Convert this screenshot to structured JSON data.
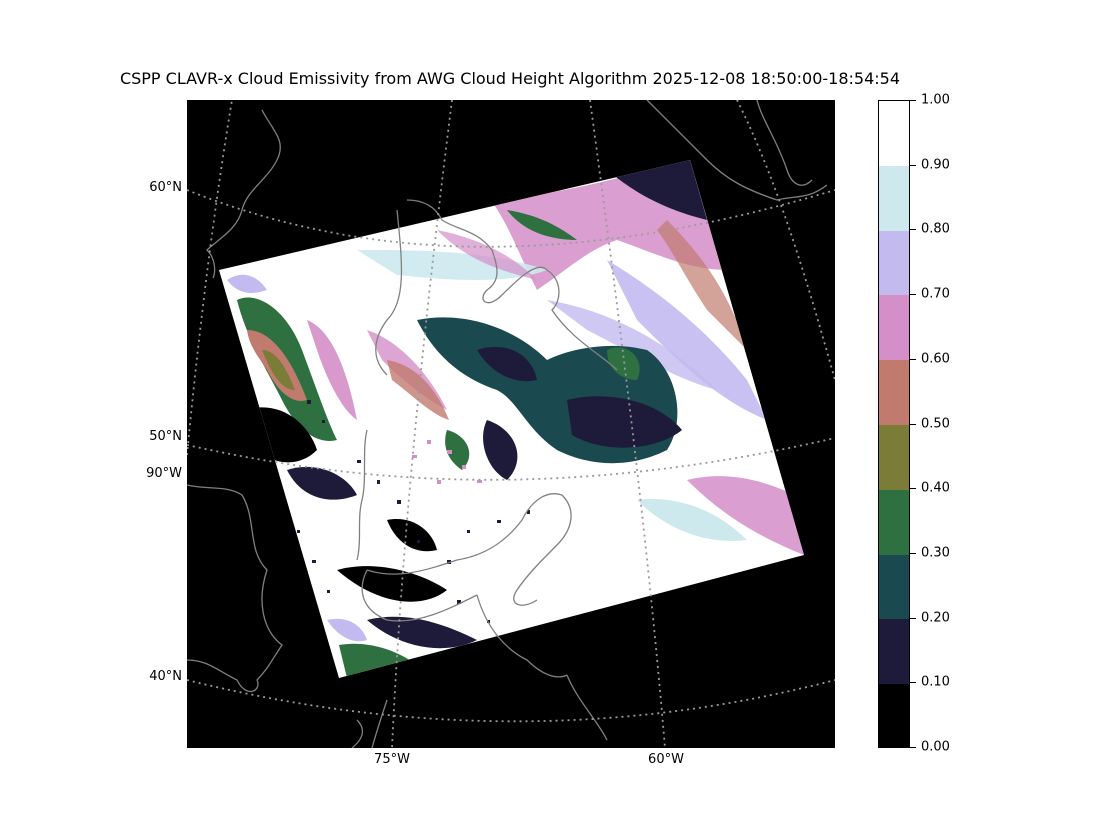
{
  "title": "CSPP CLAVR-x Cloud Emissivity from AWG Cloud Height Algorithm 2025-12-08 18:50:00-18:54:54",
  "map": {
    "lat_labels": [
      "60°N",
      "50°N",
      "90°W",
      "40°N"
    ],
    "lon_labels": [
      "75°W",
      "60°W"
    ],
    "background_color": "#000000",
    "coastline_color": "#808080",
    "gridline_color": "#9a9a9a"
  },
  "colorbar": {
    "ticks": [
      "0.00",
      "0.10",
      "0.20",
      "0.30",
      "0.40",
      "0.50",
      "0.60",
      "0.70",
      "0.80",
      "0.90",
      "1.00"
    ],
    "bins": [
      {
        "min": 0.0,
        "max": 0.1,
        "color": "#000000"
      },
      {
        "min": 0.1,
        "max": 0.2,
        "color": "#1e1a3a"
      },
      {
        "min": 0.2,
        "max": 0.3,
        "color": "#1a4a4f"
      },
      {
        "min": 0.3,
        "max": 0.4,
        "color": "#2e7040"
      },
      {
        "min": 0.4,
        "max": 0.5,
        "color": "#7a7c38"
      },
      {
        "min": 0.5,
        "max": 0.6,
        "color": "#c07a6e"
      },
      {
        "min": 0.6,
        "max": 0.7,
        "color": "#d48ec8"
      },
      {
        "min": 0.7,
        "max": 0.8,
        "color": "#c3baf0"
      },
      {
        "min": 0.8,
        "max": 0.9,
        "color": "#cde9ee"
      },
      {
        "min": 0.9,
        "max": 1.0,
        "color": "#ffffff"
      }
    ]
  }
}
